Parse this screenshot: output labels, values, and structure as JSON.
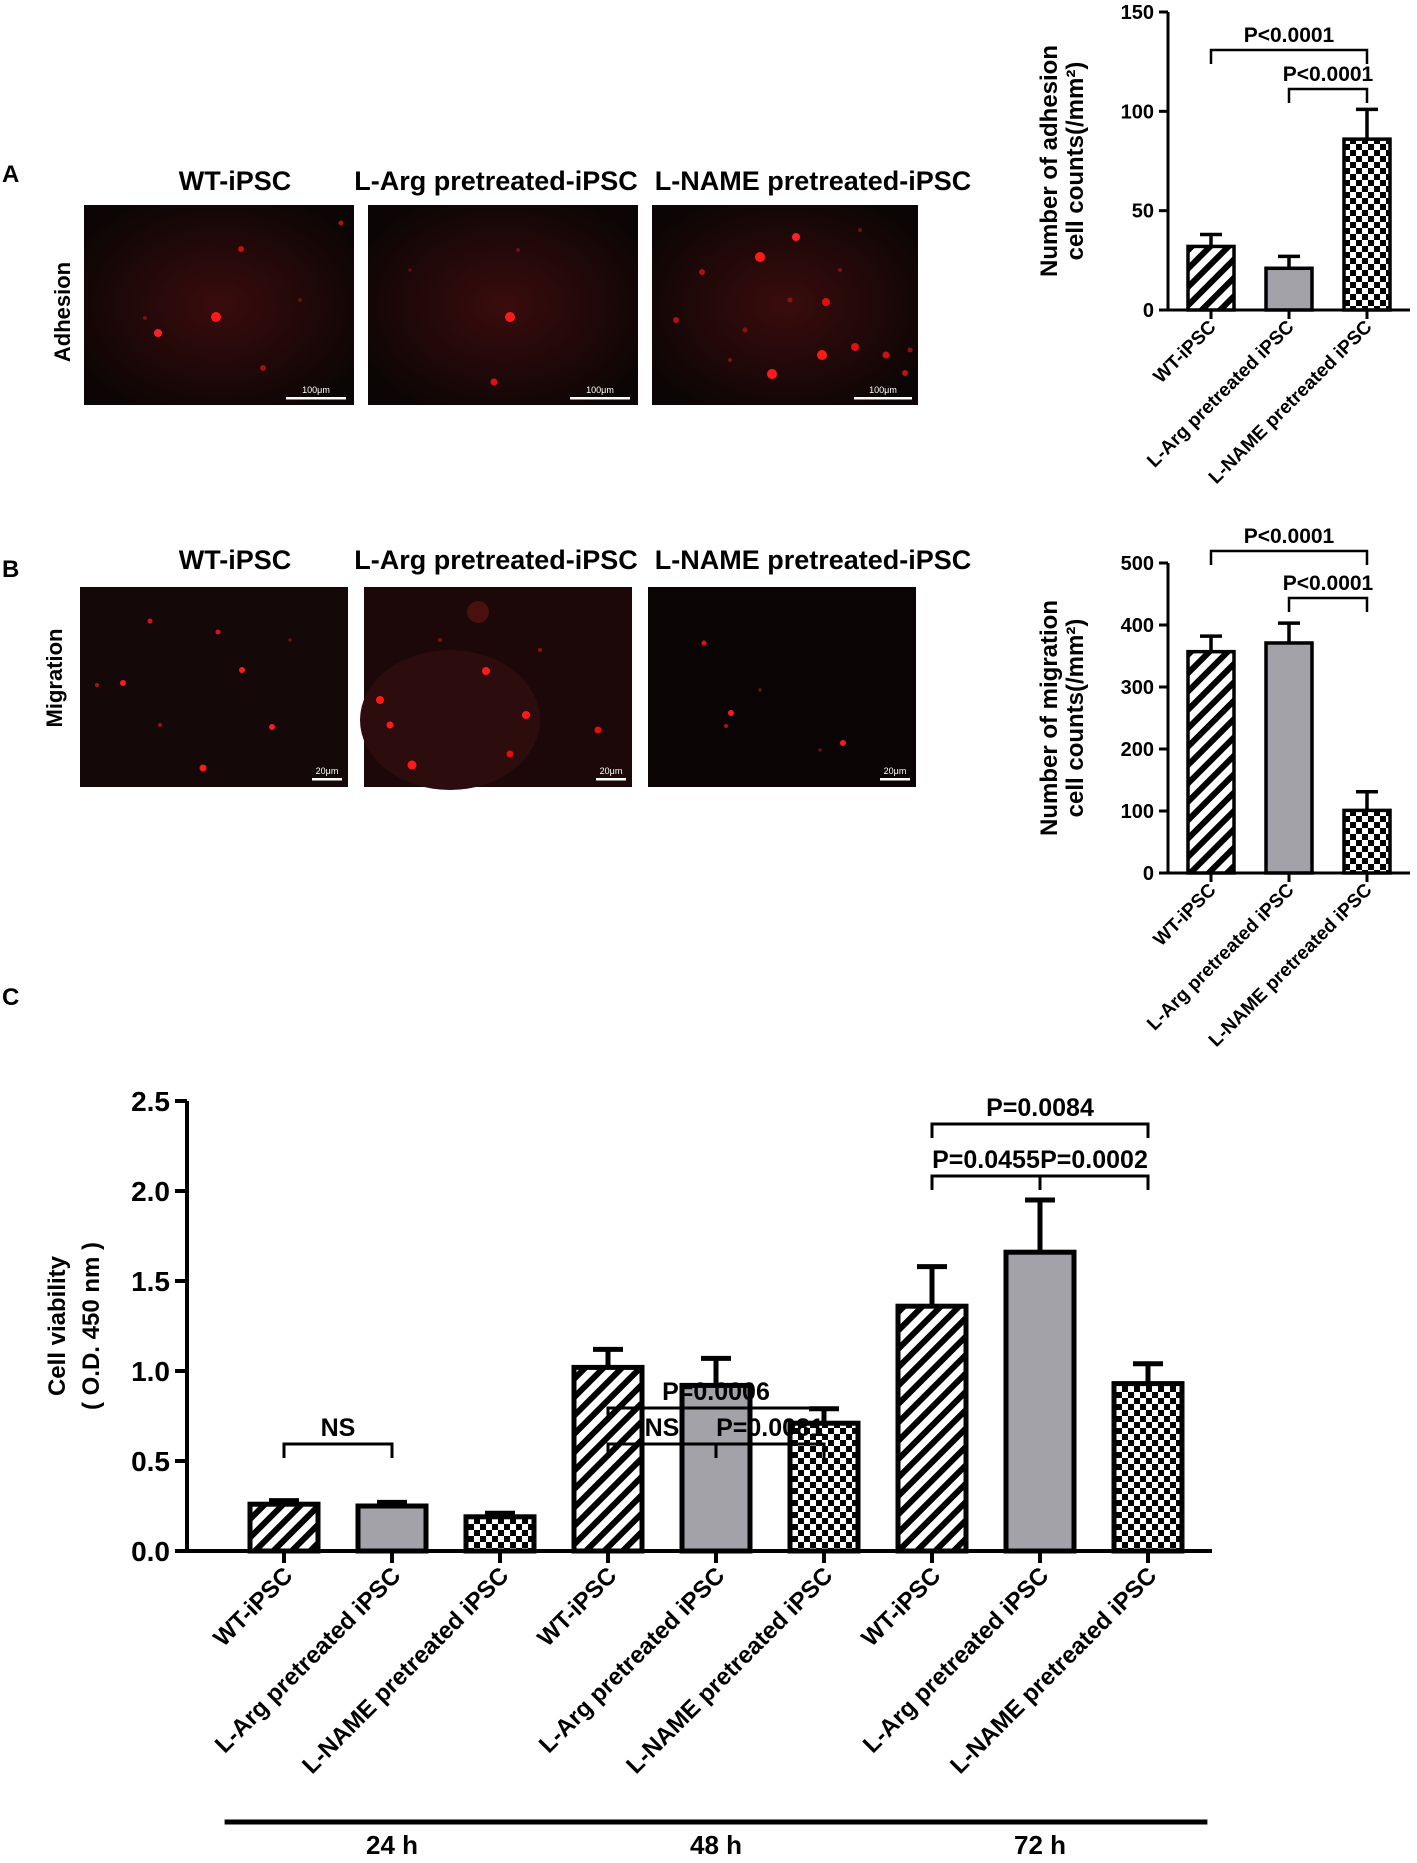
{
  "panels": {
    "A": "A",
    "B": "B",
    "C": "C"
  },
  "micrographs": {
    "titles": [
      "WT-iPSC",
      "L-Arg pretreated-iPSC",
      "L-NAME pretreated-iPSC"
    ],
    "adhesion_label": "Adhesion",
    "migration_label": "Migration",
    "adhesion_scale": "100μm",
    "migration_scale": "20μm",
    "fluorescence_color": "#ff1a1a"
  },
  "colors": {
    "bar_fill": "#a2a2a8",
    "axis": "#000000",
    "image_bg": "#0c0505"
  },
  "chart_data": [
    {
      "id": "adhesion",
      "type": "bar",
      "categories": [
        "WT-iPSC",
        "L-Arg pretreated iPSC",
        "L-NAME pretreated iPSC"
      ],
      "patterns": [
        "diagonal-stripes",
        "solid-gray",
        "checkerboard"
      ],
      "values": [
        32,
        21,
        86
      ],
      "errors": [
        6,
        6,
        15
      ],
      "ylabel_lines": [
        "Number of adhesion",
        "cell counts(/mm²)"
      ],
      "ylim": [
        0,
        150
      ],
      "yticks": [
        0,
        50,
        100,
        150
      ],
      "comparisons": [
        {
          "from": 0,
          "to": 2,
          "label": "P<0.0001"
        },
        {
          "from": 1,
          "to": 2,
          "label": "P<0.0001"
        }
      ]
    },
    {
      "id": "migration",
      "type": "bar",
      "categories": [
        "WT-iPSC",
        "L-Arg pretreated iPSC",
        "L-NAME pretreated iPSC"
      ],
      "patterns": [
        "diagonal-stripes",
        "solid-gray",
        "checkerboard"
      ],
      "values": [
        357,
        371,
        101
      ],
      "errors": [
        25,
        32,
        30
      ],
      "ylabel_lines": [
        "Number of migration",
        "cell counts(/mm²)"
      ],
      "ylim": [
        0,
        500
      ],
      "yticks": [
        0,
        100,
        200,
        300,
        400,
        500
      ],
      "comparisons": [
        {
          "from": 0,
          "to": 2,
          "label": "P<0.0001"
        },
        {
          "from": 1,
          "to": 2,
          "label": "P<0.0001"
        }
      ]
    },
    {
      "id": "viability",
      "type": "bar",
      "groups": [
        "24 h",
        "48 h",
        "72 h"
      ],
      "categories": [
        "WT-iPSC",
        "L-Arg pretreated iPSC",
        "L-NAME pretreated iPSC",
        "WT-iPSC",
        "L-Arg pretreated iPSC",
        "L-NAME pretreated iPSC",
        "WT-iPSC",
        "L-Arg pretreated iPSC",
        "L-NAME pretreated iPSC"
      ],
      "patterns": [
        "diagonal-stripes",
        "solid-gray",
        "checkerboard",
        "diagonal-stripes",
        "solid-gray",
        "checkerboard",
        "diagonal-stripes",
        "solid-gray",
        "checkerboard"
      ],
      "values": [
        0.26,
        0.25,
        0.19,
        1.02,
        0.92,
        0.71,
        1.36,
        1.66,
        0.93
      ],
      "errors": [
        0.02,
        0.02,
        0.02,
        0.1,
        0.15,
        0.08,
        0.22,
        0.29,
        0.11
      ],
      "ylabel_lines": [
        "Cell viability",
        "( O.D. 450 nm )"
      ],
      "ylim": [
        0,
        2.5
      ],
      "yticks": [
        "0.0",
        "0.5",
        "1.0",
        "1.5",
        "2.0",
        "2.5"
      ],
      "comparisons": [
        {
          "from": 0,
          "to": 1,
          "label": "NS"
        },
        {
          "from": 3,
          "to": 5,
          "label": "P=0.0006"
        },
        {
          "from": 3,
          "to": 4,
          "label": "NS"
        },
        {
          "from": 4,
          "to": 5,
          "label": "P=0.0081"
        },
        {
          "from": 6,
          "to": 8,
          "label": "P=0.0084"
        },
        {
          "from": 6,
          "to": 7,
          "label": "P=0.0455"
        },
        {
          "from": 7,
          "to": 8,
          "label": "P=0.0002"
        }
      ]
    }
  ]
}
